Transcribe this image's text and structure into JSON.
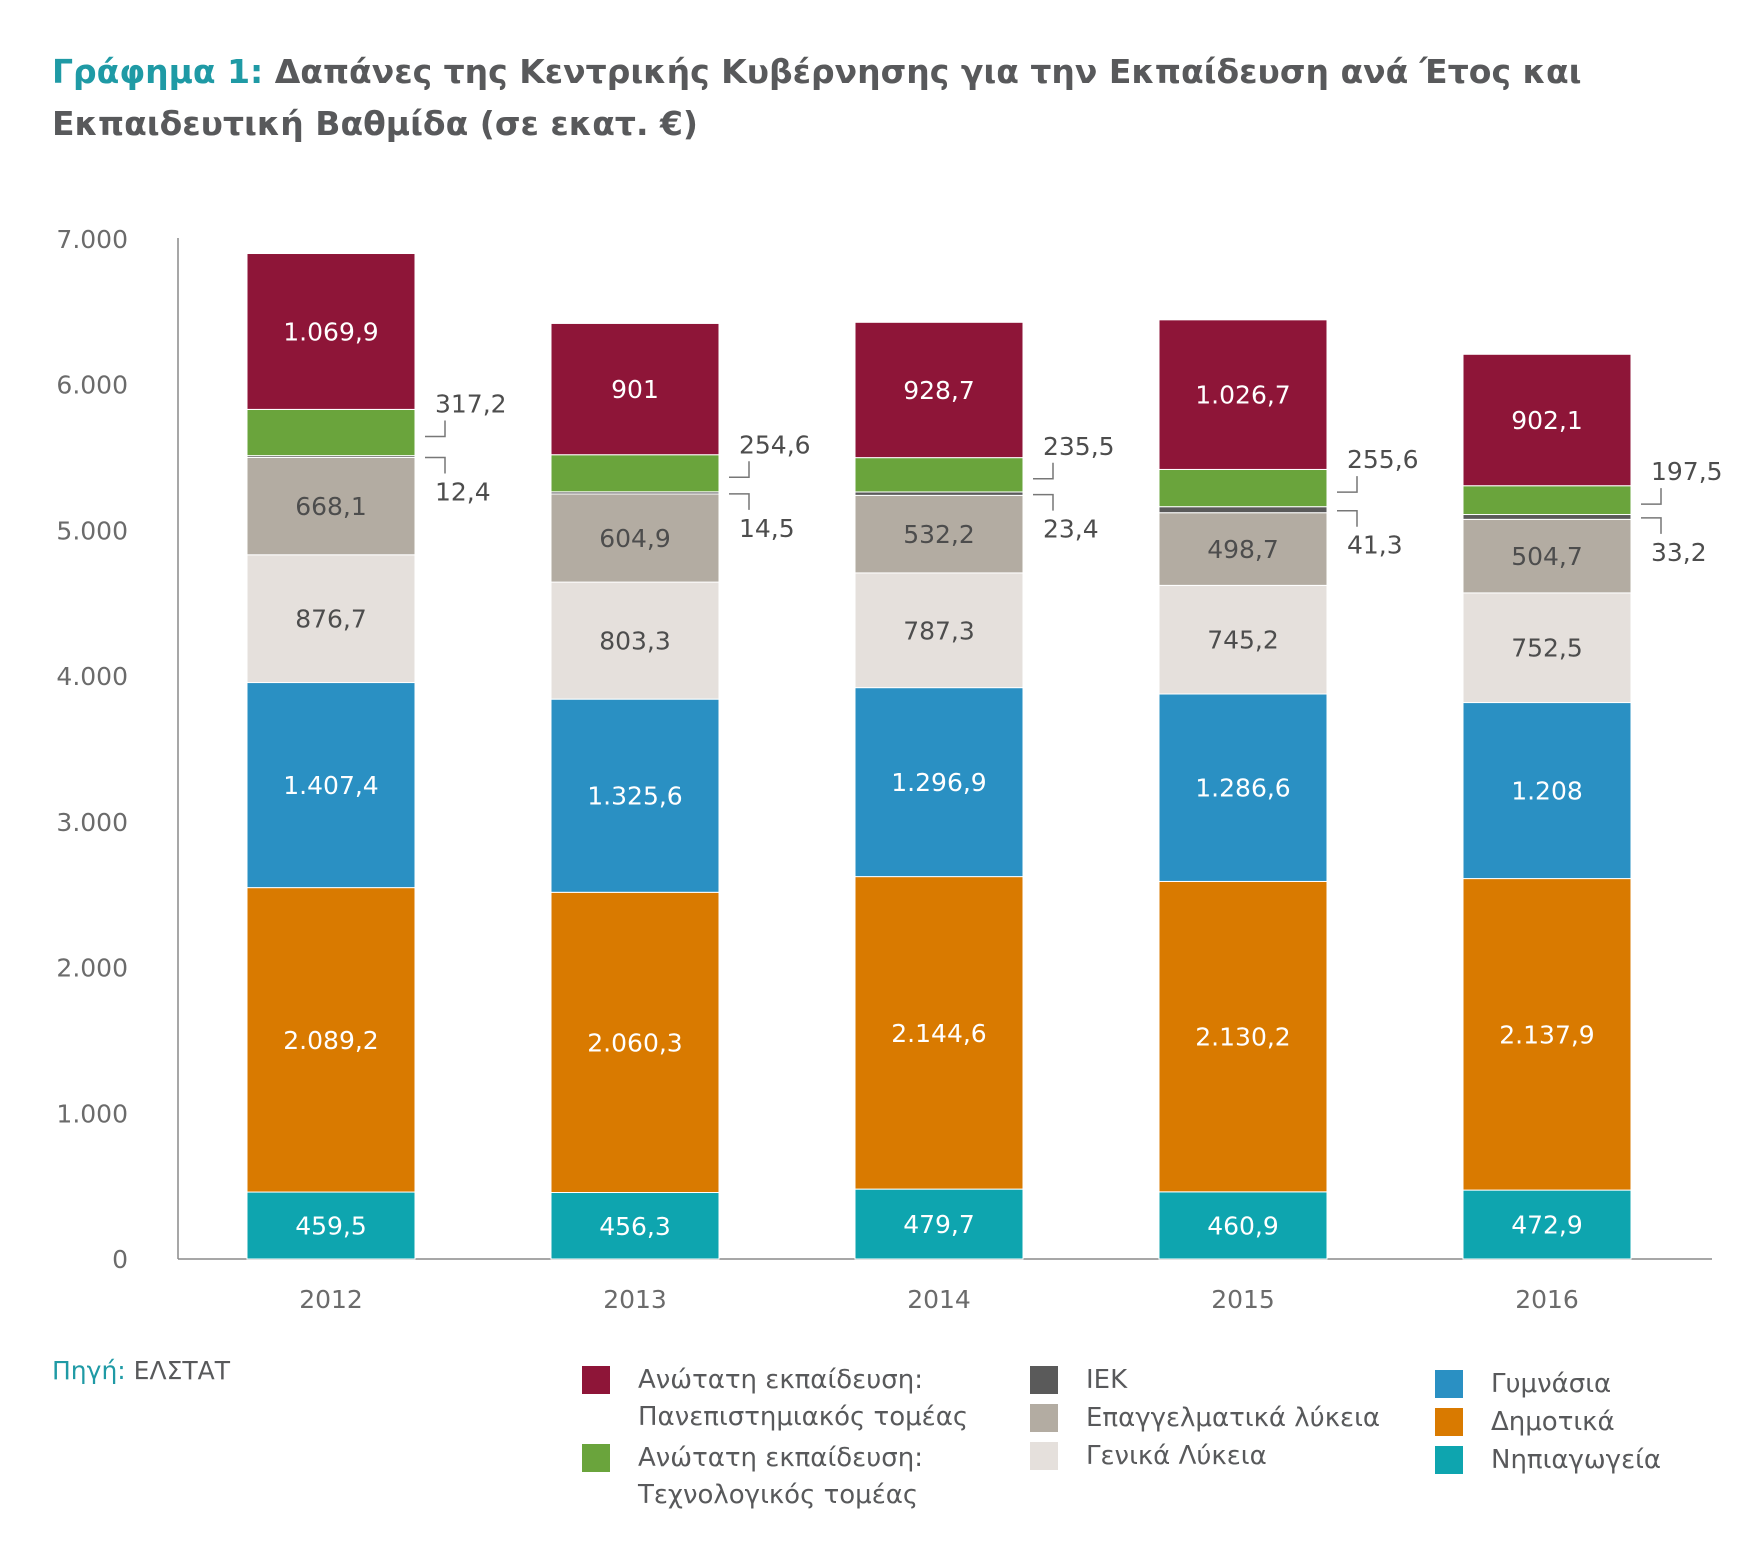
{
  "title": {
    "prefix": "Γράφημα 1:",
    "text": "Δαπάνες της Κεντρικής Κυβέρνησης για την Εκπαίδευση ανά Έτος και Εκπαιδευτική Βαθμίδα (σε εκατ. €)"
  },
  "source": {
    "label": "Πηγή:",
    "value": "ΕΛΣΤΑΤ"
  },
  "chart_data": {
    "type": "bar",
    "stacked": true,
    "title": "Δαπάνες της Κεντρικής Κυβέρνησης για την Εκπαίδευση ανά Έτος και Εκπαιδευτική Βαθμίδα (σε εκατ. €)",
    "xlabel": "",
    "ylabel": "",
    "ylim": [
      0,
      7000
    ],
    "yticks": [
      0,
      1000,
      2000,
      3000,
      4000,
      5000,
      6000,
      7000
    ],
    "ytick_labels": [
      "0",
      "1.000",
      "2.000",
      "3.000",
      "4.000",
      "5.000",
      "6.000",
      "7.000"
    ],
    "grid": false,
    "legend_position": "bottom",
    "categories": [
      "2012",
      "2013",
      "2014",
      "2015",
      "2016"
    ],
    "series": [
      {
        "name": "Νηπιαγωγεία",
        "color": "#0ea5af",
        "label_style": "inside-light",
        "values": [
          459.5,
          456.3,
          479.7,
          460.9,
          472.9
        ],
        "labels": [
          "459,5",
          "456,3",
          "479,7",
          "460,9",
          "472,9"
        ]
      },
      {
        "name": "Δημοτικά",
        "color": "#d97a00",
        "label_style": "inside-light",
        "values": [
          2089.2,
          2060.3,
          2144.6,
          2130.2,
          2137.9
        ],
        "labels": [
          "2.089,2",
          "2.060,3",
          "2.144,6",
          "2.130,2",
          "2.137,9"
        ]
      },
      {
        "name": "Γυμνάσια",
        "color": "#2a90c3",
        "label_style": "inside-light",
        "values": [
          1407.4,
          1325.6,
          1296.9,
          1286.6,
          1208
        ],
        "labels": [
          "1.407,4",
          "1.325,6",
          "1.296,9",
          "1.286,6",
          "1.208"
        ]
      },
      {
        "name": "Γενικά Λύκεια",
        "color": "#e5e0dc",
        "label_style": "inside-dark",
        "values": [
          876.7,
          803.3,
          787.3,
          745.2,
          752.5
        ],
        "labels": [
          "876,7",
          "803,3",
          "787,3",
          "745,2",
          "752,5"
        ]
      },
      {
        "name": "Επαγγελματικά λύκεια",
        "color": "#b3aca2",
        "label_style": "inside-dark",
        "values": [
          668.1,
          604.9,
          532.2,
          498.7,
          504.7
        ],
        "labels": [
          "668,1",
          "604,9",
          "532,2",
          "498,7",
          "504,7"
        ]
      },
      {
        "name": "ΙΕΚ",
        "color": "#5a5a5a",
        "label_style": "callout-lower",
        "values": [
          12.4,
          14.5,
          23.4,
          41.3,
          33.2
        ],
        "labels": [
          "12,4",
          "14,5",
          "23,4",
          "41,3",
          "33,2"
        ]
      },
      {
        "name": "Ανώτατη εκπαίδευση: Τεχνολογικός τομέας",
        "color": "#6aa43c",
        "label_style": "callout-upper",
        "values": [
          317.2,
          254.6,
          235.5,
          255.6,
          197.5
        ],
        "labels": [
          "317,2",
          "254,6",
          "235,5",
          "255,6",
          "197,5"
        ]
      },
      {
        "name": "Ανώτατη εκπαίδευση: Πανεπιστημιακός τομέας",
        "color": "#8e1538",
        "label_style": "inside-light",
        "values": [
          1069.9,
          901,
          928.7,
          1026.7,
          902.1
        ],
        "labels": [
          "1.069,9",
          "901",
          "928,7",
          "1.026,7",
          "902,1"
        ]
      }
    ]
  },
  "legend": [
    {
      "label": "Ανώτατη εκπαίδευση:\nΠανεπιστημιακός τομέας",
      "color": "#8e1538"
    },
    {
      "label": "Ανώτατη εκπαίδευση:\nΤεχνολογικός τομέας",
      "color": "#6aa43c"
    },
    {
      "label": "ΙΕΚ",
      "color": "#5a5a5a"
    },
    {
      "label": "Επαγγελματικά λύκεια",
      "color": "#b3aca2"
    },
    {
      "label": "Γενικά Λύκεια",
      "color": "#e5e0dc"
    },
    {
      "label": "Γυμνάσια",
      "color": "#2a90c3"
    },
    {
      "label": "Δημοτικά",
      "color": "#d97a00"
    },
    {
      "label": "Νηπιαγωγεία",
      "color": "#0ea5af"
    }
  ]
}
